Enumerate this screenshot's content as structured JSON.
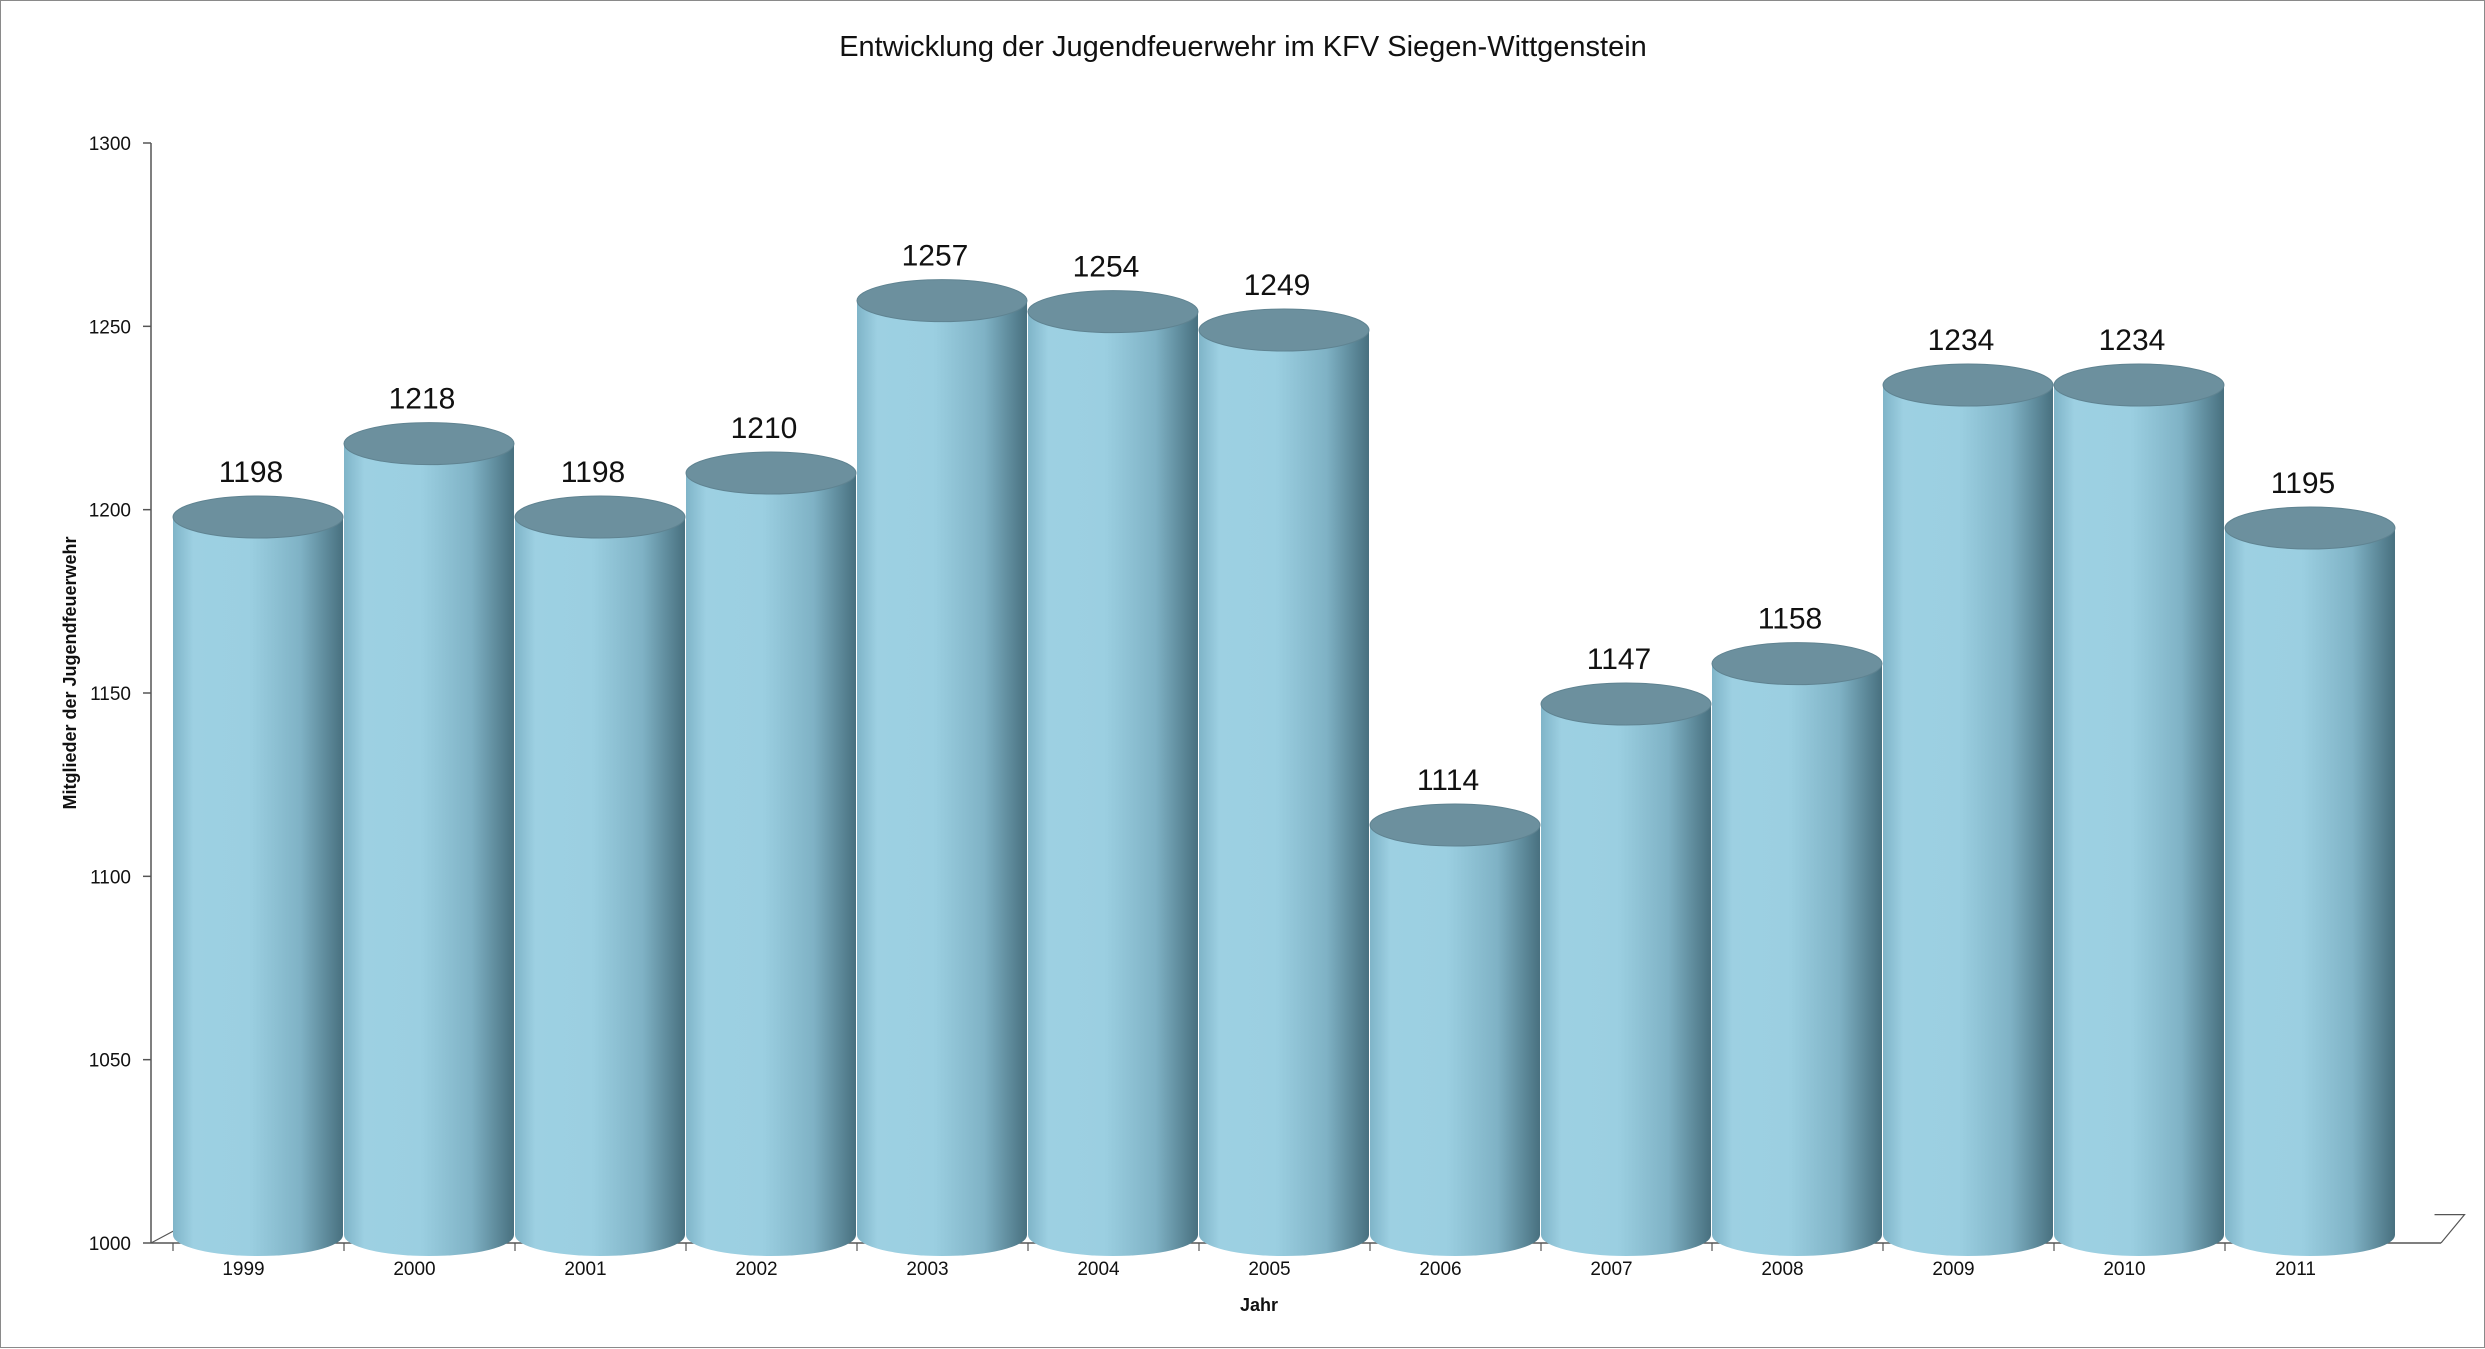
{
  "chart_data": {
    "type": "bar",
    "style": "3d-cylinder",
    "title": "Entwicklung der Jugendfeuerwehr im KFV Siegen-Wittgenstein",
    "xlabel": "Jahr",
    "ylabel": "Mitglieder der Jugendfeuerwehr",
    "categories": [
      "1999",
      "2000",
      "2001",
      "2002",
      "2003",
      "2004",
      "2005",
      "2006",
      "2007",
      "2008",
      "2009",
      "2010",
      "2011"
    ],
    "values": [
      1198,
      1218,
      1198,
      1210,
      1257,
      1254,
      1249,
      1114,
      1147,
      1158,
      1234,
      1234,
      1195
    ],
    "ylim": [
      1000,
      1300
    ],
    "yticks": [
      1000,
      1050,
      1100,
      1150,
      1200,
      1250,
      1300
    ],
    "grid": false,
    "legend": "none",
    "colors": {
      "cylinder_light": "#9dd0e2",
      "cylinder_mid": "#7fb4c8",
      "cylinder_dark": "#4f7a8a",
      "cylinder_top": "#6c909e",
      "axis": "#555555"
    }
  }
}
